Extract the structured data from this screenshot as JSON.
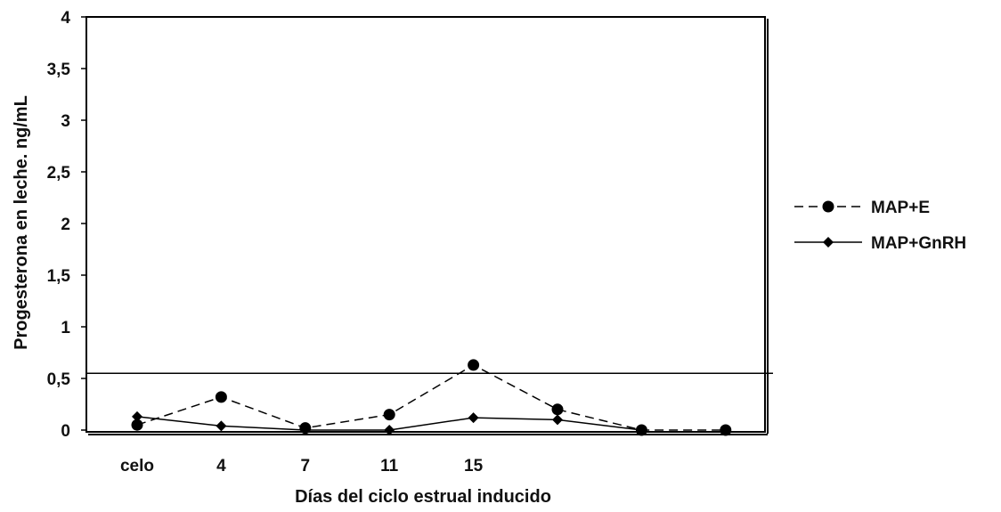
{
  "chart_data": {
    "type": "line",
    "title": "",
    "xlabel": "Días del ciclo estrual inducido",
    "ylabel": "Progesterona en leche. ng/mL",
    "ylim": [
      0,
      4
    ],
    "yticks": [
      "0",
      "0,5",
      "1",
      "1,5",
      "2",
      "2,5",
      "3",
      "3,5",
      "4"
    ],
    "x_tick_labels": [
      "celo",
      "4",
      "7",
      "11",
      "15",
      "",
      "",
      ""
    ],
    "x_positions": 8,
    "reference_line": 0.55,
    "grid": false,
    "legend_position": "right",
    "series": [
      {
        "name": "MAP+E",
        "style": "dashed",
        "marker": "circle",
        "color": "#000000",
        "values": [
          0.05,
          0.32,
          0.02,
          0.15,
          0.63,
          0.2,
          0.0,
          0.0
        ]
      },
      {
        "name": "MAP+GnRH",
        "style": "solid",
        "marker": "diamond",
        "color": "#000000",
        "values": [
          0.13,
          0.04,
          0.0,
          0.0,
          0.12,
          0.1,
          0.0,
          null
        ]
      }
    ]
  }
}
